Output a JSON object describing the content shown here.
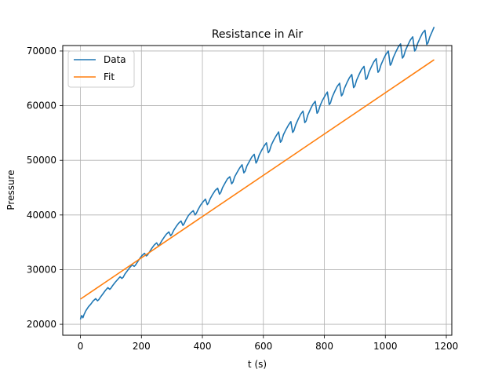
{
  "chart_data": {
    "type": "line",
    "title": "Resistance in Air",
    "xlabel": "t (s)",
    "ylabel": "Pressure",
    "xlim": [
      -58,
      1218
    ],
    "ylim": [
      18000,
      71000
    ],
    "x_ticks": [
      0,
      200,
      400,
      600,
      800,
      1000,
      1200
    ],
    "y_ticks": [
      20000,
      30000,
      40000,
      50000,
      60000,
      70000
    ],
    "x_tick_labels": [
      "0",
      "200",
      "400",
      "600",
      "800",
      "1000",
      "1200"
    ],
    "y_tick_labels": [
      "20000",
      "30000",
      "40000",
      "50000",
      "60000",
      "70000"
    ],
    "grid": true,
    "legend_position": "top-left",
    "series": [
      {
        "name": "Data",
        "color": "#1f77b4",
        "x": [
          0,
          4,
          8,
          12,
          18,
          26,
          34,
          42,
          50,
          56,
          60,
          66,
          74,
          82,
          90,
          96,
          100,
          106,
          114,
          122,
          130,
          136,
          140,
          146,
          154,
          162,
          170,
          176,
          180,
          186,
          194,
          202,
          210,
          216,
          220,
          226,
          234,
          242,
          250,
          256,
          260,
          266,
          274,
          282,
          290,
          296,
          300,
          306,
          314,
          322,
          330,
          336,
          340,
          346,
          354,
          362,
          370,
          376,
          380,
          386,
          394,
          402,
          410,
          416,
          420,
          426,
          434,
          442,
          450,
          456,
          460,
          466,
          474,
          482,
          490,
          496,
          500,
          506,
          514,
          522,
          530,
          536,
          540,
          546,
          554,
          562,
          570,
          576,
          580,
          586,
          594,
          602,
          610,
          616,
          620,
          626,
          634,
          642,
          650,
          656,
          660,
          666,
          674,
          682,
          690,
          696,
          700,
          706,
          714,
          722,
          730,
          736,
          740,
          746,
          754,
          762,
          770,
          776,
          780,
          786,
          794,
          802,
          810,
          816,
          820,
          826,
          834,
          842,
          850,
          856,
          860,
          866,
          874,
          882,
          890,
          896,
          900,
          906,
          914,
          922,
          930,
          936,
          940,
          946,
          954,
          962,
          970,
          976,
          980,
          986,
          994,
          1002,
          1010,
          1016,
          1020,
          1026,
          1034,
          1042,
          1050,
          1056,
          1060,
          1066,
          1074,
          1082,
          1090,
          1096,
          1100,
          1106,
          1114,
          1122,
          1130,
          1136,
          1140,
          1146,
          1154,
          1160
        ],
        "y": [
          20900,
          21600,
          21200,
          21800,
          22500,
          23200,
          23700,
          24300,
          24700,
          24300,
          24500,
          25000,
          25600,
          26200,
          26700,
          26400,
          26600,
          27100,
          27700,
          28200,
          28700,
          28400,
          28600,
          29200,
          29800,
          30400,
          30900,
          30600,
          30800,
          31300,
          32000,
          32600,
          33000,
          32500,
          32700,
          33200,
          33900,
          34500,
          34900,
          34300,
          34600,
          35200,
          35900,
          36500,
          36900,
          36200,
          36500,
          37200,
          37900,
          38500,
          38900,
          38100,
          38400,
          39100,
          39900,
          40400,
          40800,
          40000,
          40300,
          41000,
          41800,
          42400,
          42900,
          41900,
          42200,
          43000,
          43800,
          44500,
          44900,
          43800,
          44100,
          45000,
          45800,
          46600,
          47000,
          45700,
          46000,
          47000,
          47800,
          48600,
          49200,
          47700,
          48000,
          49000,
          49800,
          50600,
          51100,
          49500,
          49900,
          50900,
          51800,
          52600,
          53200,
          51400,
          51700,
          52800,
          53700,
          54500,
          55200,
          53300,
          53600,
          54700,
          55600,
          56400,
          57100,
          55100,
          55400,
          56500,
          57500,
          58400,
          59000,
          56900,
          57200,
          58300,
          59300,
          60200,
          60800,
          58600,
          58900,
          60000,
          61000,
          61800,
          62500,
          60200,
          60500,
          61600,
          62600,
          63500,
          64100,
          61800,
          62100,
          63200,
          64200,
          65100,
          65700,
          63300,
          63600,
          64700,
          65700,
          66600,
          67200,
          64800,
          65000,
          66100,
          67100,
          68000,
          68600,
          66100,
          66400,
          67500,
          68500,
          69400,
          70000,
          67400,
          67700,
          68800,
          69800,
          70700,
          71300,
          68700,
          69000,
          70100,
          71100,
          72000,
          72600,
          70000,
          70300,
          71400,
          72400,
          73300,
          73800,
          71200,
          71500,
          72600,
          73600,
          74400
        ]
      },
      {
        "name": "Fit",
        "color": "#ff7f0e",
        "x": [
          0,
          1160
        ],
        "y": [
          24600,
          68400
        ]
      }
    ]
  }
}
